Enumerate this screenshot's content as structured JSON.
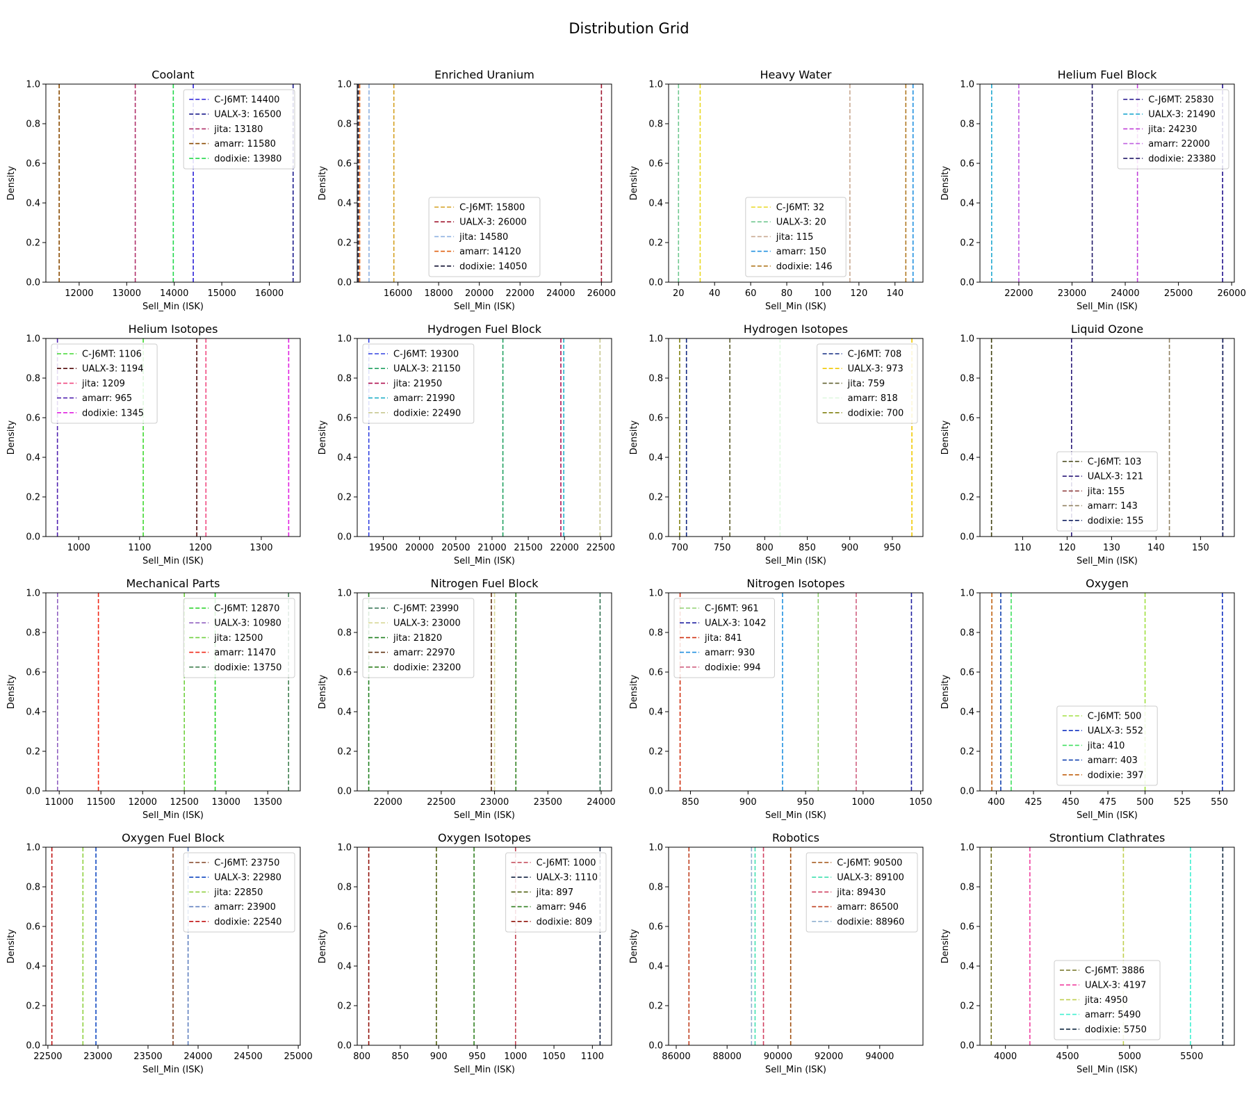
{
  "figure": {
    "title": "Distribution Grid"
  },
  "chart_data": [
    {
      "type": "line",
      "title": "Coolant",
      "xlabel": "Sell_Min (ISK)",
      "ylabel": "Density",
      "ylim": [
        0,
        1
      ],
      "xlim": [
        11300,
        16650
      ],
      "xticks": [
        12000,
        13000,
        14000,
        15000,
        16000
      ],
      "yticks": [
        0.0,
        0.2,
        0.4,
        0.6,
        0.8,
        1.0
      ],
      "legend_loc": "upper right",
      "series": [
        {
          "name": "C-J6MT",
          "value": 14400,
          "color": "#2a1fd8"
        },
        {
          "name": "UALX-3",
          "value": 16500,
          "color": "#1a1a8c"
        },
        {
          "name": "jita",
          "value": 13180,
          "color": "#b0306a"
        },
        {
          "name": "amarr",
          "value": 11580,
          "color": "#8a4a00"
        },
        {
          "name": "dodixie",
          "value": 13980,
          "color": "#22d84a"
        }
      ]
    },
    {
      "type": "line",
      "title": "Enriched Uranium",
      "xlabel": "Sell_Min (ISK)",
      "ylabel": "Density",
      "ylim": [
        0,
        1
      ],
      "xlim": [
        14000,
        26500
      ],
      "xticks": [
        16000,
        18000,
        20000,
        22000,
        24000,
        26000
      ],
      "yticks": [
        0.0,
        0.2,
        0.4,
        0.6,
        0.8,
        1.0
      ],
      "legend_loc": "lower center",
      "series": [
        {
          "name": "C-J6MT",
          "value": 15800,
          "color": "#d4a020"
        },
        {
          "name": "UALX-3",
          "value": 26000,
          "color": "#a01830"
        },
        {
          "name": "jita",
          "value": 14580,
          "color": "#8cb0e0"
        },
        {
          "name": "amarr",
          "value": 14120,
          "color": "#e06010"
        },
        {
          "name": "dodixie",
          "value": 14050,
          "color": "#101030"
        }
      ]
    },
    {
      "type": "line",
      "title": "Heavy Water",
      "xlabel": "Sell_Min (ISK)",
      "ylabel": "Density",
      "ylim": [
        0,
        1
      ],
      "xlim": [
        14.5,
        155.5
      ],
      "xticks": [
        20,
        40,
        60,
        80,
        100,
        120,
        140
      ],
      "yticks": [
        0.0,
        0.2,
        0.4,
        0.6,
        0.8,
        1.0
      ],
      "legend_loc": "lower center",
      "series": [
        {
          "name": "C-J6MT",
          "value": 32,
          "color": "#e8d820"
        },
        {
          "name": "UALX-3",
          "value": 20,
          "color": "#70c890"
        },
        {
          "name": "jita",
          "value": 115,
          "color": "#c8a890"
        },
        {
          "name": "amarr",
          "value": 150,
          "color": "#2090e0"
        },
        {
          "name": "dodixie",
          "value": 146,
          "color": "#b07820"
        }
      ]
    },
    {
      "type": "line",
      "title": "Helium Fuel Block",
      "xlabel": "Sell_Min (ISK)",
      "ylabel": "Density",
      "ylim": [
        0,
        1
      ],
      "xlim": [
        21270,
        26050
      ],
      "xticks": [
        22000,
        23000,
        24000,
        25000,
        26000
      ],
      "yticks": [
        0.0,
        0.2,
        0.4,
        0.6,
        0.8,
        1.0
      ],
      "legend_loc": "upper right",
      "series": [
        {
          "name": "C-J6MT",
          "value": 25830,
          "color": "#20108c"
        },
        {
          "name": "UALX-3",
          "value": 21490,
          "color": "#20a8d0"
        },
        {
          "name": "jita",
          "value": 24230,
          "color": "#c040d8"
        },
        {
          "name": "amarr",
          "value": 22000,
          "color": "#c060e0"
        },
        {
          "name": "dodixie",
          "value": 23380,
          "color": "#201868"
        }
      ]
    },
    {
      "type": "line",
      "title": "Helium Isotopes",
      "xlabel": "Sell_Min (ISK)",
      "ylabel": "Density",
      "ylim": [
        0,
        1
      ],
      "xlim": [
        946,
        1364
      ],
      "xticks": [
        1000,
        1100,
        1200,
        1300
      ],
      "yticks": [
        0.0,
        0.2,
        0.4,
        0.6,
        0.8,
        1.0
      ],
      "legend_loc": "upper left",
      "series": [
        {
          "name": "C-J6MT",
          "value": 1106,
          "color": "#40d830"
        },
        {
          "name": "UALX-3",
          "value": 1194,
          "color": "#500808"
        },
        {
          "name": "jita",
          "value": 1209,
          "color": "#f04880"
        },
        {
          "name": "amarr",
          "value": 965,
          "color": "#5020b0"
        },
        {
          "name": "dodixie",
          "value": 1345,
          "color": "#e020e0"
        }
      ]
    },
    {
      "type": "line",
      "title": "Hydrogen Fuel Block",
      "xlabel": "Sell_Min (ISK)",
      "ylabel": "Density",
      "ylim": [
        0,
        1
      ],
      "xlim": [
        19140,
        22650
      ],
      "xticks": [
        19500,
        20000,
        20500,
        21000,
        21500,
        22000,
        22500
      ],
      "yticks": [
        0.0,
        0.2,
        0.4,
        0.6,
        0.8,
        1.0
      ],
      "legend_loc": "upper left",
      "series": [
        {
          "name": "C-J6MT",
          "value": 19300,
          "color": "#3040e0"
        },
        {
          "name": "UALX-3",
          "value": 21150,
          "color": "#20a060"
        },
        {
          "name": "jita",
          "value": 21950,
          "color": "#b01050"
        },
        {
          "name": "amarr",
          "value": 21990,
          "color": "#20b0c8"
        },
        {
          "name": "dodixie",
          "value": 22490,
          "color": "#c8c890"
        }
      ]
    },
    {
      "type": "line",
      "title": "Hydrogen Isotopes",
      "xlabel": "Sell_Min (ISK)",
      "ylabel": "Density",
      "ylim": [
        0,
        1
      ],
      "xlim": [
        687,
        986
      ],
      "xticks": [
        700,
        750,
        800,
        850,
        900,
        950
      ],
      "yticks": [
        0.0,
        0.2,
        0.4,
        0.6,
        0.8,
        1.0
      ],
      "legend_loc": "upper right",
      "series": [
        {
          "name": "C-J6MT",
          "value": 708,
          "color": "#102880"
        },
        {
          "name": "UALX-3",
          "value": 973,
          "color": "#f0c800"
        },
        {
          "name": "jita",
          "value": 759,
          "color": "#606030"
        },
        {
          "name": "amarr",
          "value": 818,
          "color": "#e0f8e0"
        },
        {
          "name": "dodixie",
          "value": 700,
          "color": "#808010"
        }
      ]
    },
    {
      "type": "line",
      "title": "Liquid Ozone",
      "xlabel": "Sell_Min (ISK)",
      "ylabel": "Density",
      "ylim": [
        0,
        1
      ],
      "xlim": [
        100.4,
        157.6
      ],
      "xticks": [
        110,
        120,
        130,
        140,
        150
      ],
      "yticks": [
        0.0,
        0.2,
        0.4,
        0.6,
        0.8,
        1.0
      ],
      "legend_loc": "lower center",
      "series": [
        {
          "name": "C-J6MT",
          "value": 103,
          "color": "#404010"
        },
        {
          "name": "UALX-3",
          "value": 121,
          "color": "#281878"
        },
        {
          "name": "jita",
          "value": 155,
          "color": "#904040"
        },
        {
          "name": "amarr",
          "value": 143,
          "color": "#908060"
        },
        {
          "name": "dodixie",
          "value": 155,
          "color": "#102060"
        }
      ]
    },
    {
      "type": "line",
      "title": "Mechanical Parts",
      "xlabel": "Sell_Min (ISK)",
      "ylabel": "Density",
      "ylim": [
        0,
        1
      ],
      "xlim": [
        10840,
        13890
      ],
      "xticks": [
        11000,
        11500,
        12000,
        12500,
        13000,
        13500
      ],
      "yticks": [
        0.0,
        0.2,
        0.4,
        0.6,
        0.8,
        1.0
      ],
      "legend_loc": "upper right",
      "series": [
        {
          "name": "C-J6MT",
          "value": 12870,
          "color": "#20d020"
        },
        {
          "name": "UALX-3",
          "value": 10980,
          "color": "#9060c0"
        },
        {
          "name": "jita",
          "value": 12500,
          "color": "#70d040"
        },
        {
          "name": "amarr",
          "value": 11470,
          "color": "#f02818"
        },
        {
          "name": "dodixie",
          "value": 13750,
          "color": "#408050"
        }
      ]
    },
    {
      "type": "line",
      "title": "Nitrogen Fuel Block",
      "xlabel": "Sell_Min (ISK)",
      "ylabel": "Density",
      "ylim": [
        0,
        1
      ],
      "xlim": [
        21712,
        24098
      ],
      "xticks": [
        22000,
        22500,
        23000,
        23500,
        24000
      ],
      "yticks": [
        0.0,
        0.2,
        0.4,
        0.6,
        0.8,
        1.0
      ],
      "legend_loc": "upper left",
      "series": [
        {
          "name": "C-J6MT",
          "value": 23990,
          "color": "#307050"
        },
        {
          "name": "UALX-3",
          "value": 23000,
          "color": "#d8d898"
        },
        {
          "name": "jita",
          "value": 21820,
          "color": "#208020"
        },
        {
          "name": "amarr",
          "value": 22970,
          "color": "#603010"
        },
        {
          "name": "dodixie",
          "value": 23200,
          "color": "#308020"
        }
      ]
    },
    {
      "type": "line",
      "title": "Nitrogen Isotopes",
      "xlabel": "Sell_Min (ISK)",
      "ylabel": "Density",
      "ylim": [
        0,
        1
      ],
      "xlim": [
        831,
        1052
      ],
      "xticks": [
        850,
        900,
        950,
        1000,
        1050
      ],
      "yticks": [
        0.0,
        0.2,
        0.4,
        0.6,
        0.8,
        1.0
      ],
      "legend_loc": "upper left",
      "series": [
        {
          "name": "C-J6MT",
          "value": 961,
          "color": "#90d070"
        },
        {
          "name": "UALX-3",
          "value": 1042,
          "color": "#2020a0"
        },
        {
          "name": "jita",
          "value": 841,
          "color": "#d03010"
        },
        {
          "name": "amarr",
          "value": 930,
          "color": "#2090e0"
        },
        {
          "name": "dodixie",
          "value": 994,
          "color": "#d06080"
        }
      ]
    },
    {
      "type": "line",
      "title": "Oxygen",
      "xlabel": "Sell_Min (ISK)",
      "ylabel": "Density",
      "ylim": [
        0,
        1
      ],
      "xlim": [
        389,
        560
      ],
      "xticks": [
        400,
        425,
        450,
        475,
        500,
        525,
        550
      ],
      "yticks": [
        0.0,
        0.2,
        0.4,
        0.6,
        0.8,
        1.0
      ],
      "legend_loc": "lower center",
      "series": [
        {
          "name": "C-J6MT",
          "value": 500,
          "color": "#a0e040"
        },
        {
          "name": "UALX-3",
          "value": 552,
          "color": "#1030c0"
        },
        {
          "name": "jita",
          "value": 410,
          "color": "#40e060"
        },
        {
          "name": "amarr",
          "value": 403,
          "color": "#1040b0"
        },
        {
          "name": "dodixie",
          "value": 397,
          "color": "#c06010"
        }
      ]
    },
    {
      "type": "line",
      "title": "Oxygen Fuel Block",
      "xlabel": "Sell_Min (ISK)",
      "ylabel": "Density",
      "ylim": [
        0,
        1
      ],
      "xlim": [
        22480,
        25020
      ],
      "xticks": [
        22500,
        23000,
        23500,
        24000,
        24500,
        25000
      ],
      "yticks": [
        0.0,
        0.2,
        0.4,
        0.6,
        0.8,
        1.0
      ],
      "legend_loc": "upper right",
      "series": [
        {
          "name": "C-J6MT",
          "value": 23750,
          "color": "#804020"
        },
        {
          "name": "UALX-3",
          "value": 22980,
          "color": "#1048c0"
        },
        {
          "name": "jita",
          "value": 22850,
          "color": "#90d040"
        },
        {
          "name": "amarr",
          "value": 23900,
          "color": "#6080c0"
        },
        {
          "name": "dodixie",
          "value": 22540,
          "color": "#c01010"
        }
      ]
    },
    {
      "type": "line",
      "title": "Oxygen Isotopes",
      "xlabel": "Sell_Min (ISK)",
      "ylabel": "Density",
      "ylim": [
        0,
        1
      ],
      "xlim": [
        794,
        1125
      ],
      "xticks": [
        800,
        850,
        900,
        950,
        1000,
        1050,
        1100
      ],
      "yticks": [
        0.0,
        0.2,
        0.4,
        0.6,
        0.8,
        1.0
      ],
      "legend_loc": "upper right",
      "series": [
        {
          "name": "C-J6MT",
          "value": 1000,
          "color": "#c04050"
        },
        {
          "name": "UALX-3",
          "value": 1110,
          "color": "#102040"
        },
        {
          "name": "jita",
          "value": 897,
          "color": "#506010"
        },
        {
          "name": "amarr",
          "value": 946,
          "color": "#308020"
        },
        {
          "name": "dodixie",
          "value": 809,
          "color": "#901008"
        }
      ]
    },
    {
      "type": "line",
      "title": "Robotics",
      "xlabel": "Sell_Min (ISK)",
      "ylabel": "Density",
      "ylim": [
        0,
        1
      ],
      "xlim": [
        85700,
        95700
      ],
      "xticks": [
        86000,
        88000,
        90000,
        92000,
        94000
      ],
      "yticks": [
        0.0,
        0.2,
        0.4,
        0.6,
        0.8,
        1.0
      ],
      "legend_loc": "upper right",
      "series": [
        {
          "name": "C-J6MT",
          "value": 90500,
          "color": "#a05010"
        },
        {
          "name": "UALX-3",
          "value": 89100,
          "color": "#40e0b0"
        },
        {
          "name": "jita",
          "value": 89430,
          "color": "#d04060"
        },
        {
          "name": "amarr",
          "value": 86500,
          "color": "#c04020"
        },
        {
          "name": "dodixie",
          "value": 88960,
          "color": "#90b0d0"
        }
      ]
    },
    {
      "type": "line",
      "title": "Strontium Clathrates",
      "xlabel": "Sell_Min (ISK)",
      "ylabel": "Density",
      "ylim": [
        0,
        1
      ],
      "xlim": [
        3795,
        5843
      ],
      "xticks": [
        4000,
        4500,
        5000,
        5500
      ],
      "yticks": [
        0.0,
        0.2,
        0.4,
        0.6,
        0.8,
        1.0
      ],
      "legend_loc": "lower center",
      "series": [
        {
          "name": "C-J6MT",
          "value": 3886,
          "color": "#707020"
        },
        {
          "name": "UALX-3",
          "value": 4197,
          "color": "#f040a0"
        },
        {
          "name": "jita",
          "value": 4950,
          "color": "#c0d050"
        },
        {
          "name": "amarr",
          "value": 5490,
          "color": "#40f0d0"
        },
        {
          "name": "dodixie",
          "value": 5750,
          "color": "#102840"
        }
      ]
    }
  ]
}
